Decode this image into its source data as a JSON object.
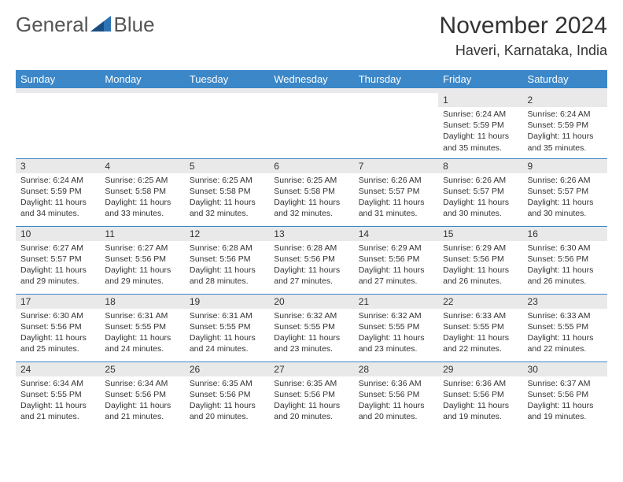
{
  "logo": {
    "word1": "General",
    "word2": "Blue"
  },
  "title": "November 2024",
  "location": "Haveri, Karnataka, India",
  "colors": {
    "header_bg": "#3b87c8",
    "header_text": "#ffffff",
    "daynum_bg": "#e9e9e9",
    "border": "#3b87c8",
    "text": "#333333",
    "page_bg": "#ffffff",
    "logo_gray": "#555555",
    "logo_blue": "#2d74b5"
  },
  "day_names": [
    "Sunday",
    "Monday",
    "Tuesday",
    "Wednesday",
    "Thursday",
    "Friday",
    "Saturday"
  ],
  "weeks": [
    [
      {
        "n": "",
        "sr": "",
        "ss": "",
        "dl": "",
        "empty": true
      },
      {
        "n": "",
        "sr": "",
        "ss": "",
        "dl": "",
        "empty": true
      },
      {
        "n": "",
        "sr": "",
        "ss": "",
        "dl": "",
        "empty": true
      },
      {
        "n": "",
        "sr": "",
        "ss": "",
        "dl": "",
        "empty": true
      },
      {
        "n": "",
        "sr": "",
        "ss": "",
        "dl": "",
        "empty": true
      },
      {
        "n": "1",
        "sr": "Sunrise: 6:24 AM",
        "ss": "Sunset: 5:59 PM",
        "dl": "Daylight: 11 hours and 35 minutes."
      },
      {
        "n": "2",
        "sr": "Sunrise: 6:24 AM",
        "ss": "Sunset: 5:59 PM",
        "dl": "Daylight: 11 hours and 35 minutes."
      }
    ],
    [
      {
        "n": "3",
        "sr": "Sunrise: 6:24 AM",
        "ss": "Sunset: 5:59 PM",
        "dl": "Daylight: 11 hours and 34 minutes."
      },
      {
        "n": "4",
        "sr": "Sunrise: 6:25 AM",
        "ss": "Sunset: 5:58 PM",
        "dl": "Daylight: 11 hours and 33 minutes."
      },
      {
        "n": "5",
        "sr": "Sunrise: 6:25 AM",
        "ss": "Sunset: 5:58 PM",
        "dl": "Daylight: 11 hours and 32 minutes."
      },
      {
        "n": "6",
        "sr": "Sunrise: 6:25 AM",
        "ss": "Sunset: 5:58 PM",
        "dl": "Daylight: 11 hours and 32 minutes."
      },
      {
        "n": "7",
        "sr": "Sunrise: 6:26 AM",
        "ss": "Sunset: 5:57 PM",
        "dl": "Daylight: 11 hours and 31 minutes."
      },
      {
        "n": "8",
        "sr": "Sunrise: 6:26 AM",
        "ss": "Sunset: 5:57 PM",
        "dl": "Daylight: 11 hours and 30 minutes."
      },
      {
        "n": "9",
        "sr": "Sunrise: 6:26 AM",
        "ss": "Sunset: 5:57 PM",
        "dl": "Daylight: 11 hours and 30 minutes."
      }
    ],
    [
      {
        "n": "10",
        "sr": "Sunrise: 6:27 AM",
        "ss": "Sunset: 5:57 PM",
        "dl": "Daylight: 11 hours and 29 minutes."
      },
      {
        "n": "11",
        "sr": "Sunrise: 6:27 AM",
        "ss": "Sunset: 5:56 PM",
        "dl": "Daylight: 11 hours and 29 minutes."
      },
      {
        "n": "12",
        "sr": "Sunrise: 6:28 AM",
        "ss": "Sunset: 5:56 PM",
        "dl": "Daylight: 11 hours and 28 minutes."
      },
      {
        "n": "13",
        "sr": "Sunrise: 6:28 AM",
        "ss": "Sunset: 5:56 PM",
        "dl": "Daylight: 11 hours and 27 minutes."
      },
      {
        "n": "14",
        "sr": "Sunrise: 6:29 AM",
        "ss": "Sunset: 5:56 PM",
        "dl": "Daylight: 11 hours and 27 minutes."
      },
      {
        "n": "15",
        "sr": "Sunrise: 6:29 AM",
        "ss": "Sunset: 5:56 PM",
        "dl": "Daylight: 11 hours and 26 minutes."
      },
      {
        "n": "16",
        "sr": "Sunrise: 6:30 AM",
        "ss": "Sunset: 5:56 PM",
        "dl": "Daylight: 11 hours and 26 minutes."
      }
    ],
    [
      {
        "n": "17",
        "sr": "Sunrise: 6:30 AM",
        "ss": "Sunset: 5:56 PM",
        "dl": "Daylight: 11 hours and 25 minutes."
      },
      {
        "n": "18",
        "sr": "Sunrise: 6:31 AM",
        "ss": "Sunset: 5:55 PM",
        "dl": "Daylight: 11 hours and 24 minutes."
      },
      {
        "n": "19",
        "sr": "Sunrise: 6:31 AM",
        "ss": "Sunset: 5:55 PM",
        "dl": "Daylight: 11 hours and 24 minutes."
      },
      {
        "n": "20",
        "sr": "Sunrise: 6:32 AM",
        "ss": "Sunset: 5:55 PM",
        "dl": "Daylight: 11 hours and 23 minutes."
      },
      {
        "n": "21",
        "sr": "Sunrise: 6:32 AM",
        "ss": "Sunset: 5:55 PM",
        "dl": "Daylight: 11 hours and 23 minutes."
      },
      {
        "n": "22",
        "sr": "Sunrise: 6:33 AM",
        "ss": "Sunset: 5:55 PM",
        "dl": "Daylight: 11 hours and 22 minutes."
      },
      {
        "n": "23",
        "sr": "Sunrise: 6:33 AM",
        "ss": "Sunset: 5:55 PM",
        "dl": "Daylight: 11 hours and 22 minutes."
      }
    ],
    [
      {
        "n": "24",
        "sr": "Sunrise: 6:34 AM",
        "ss": "Sunset: 5:55 PM",
        "dl": "Daylight: 11 hours and 21 minutes."
      },
      {
        "n": "25",
        "sr": "Sunrise: 6:34 AM",
        "ss": "Sunset: 5:56 PM",
        "dl": "Daylight: 11 hours and 21 minutes."
      },
      {
        "n": "26",
        "sr": "Sunrise: 6:35 AM",
        "ss": "Sunset: 5:56 PM",
        "dl": "Daylight: 11 hours and 20 minutes."
      },
      {
        "n": "27",
        "sr": "Sunrise: 6:35 AM",
        "ss": "Sunset: 5:56 PM",
        "dl": "Daylight: 11 hours and 20 minutes."
      },
      {
        "n": "28",
        "sr": "Sunrise: 6:36 AM",
        "ss": "Sunset: 5:56 PM",
        "dl": "Daylight: 11 hours and 20 minutes."
      },
      {
        "n": "29",
        "sr": "Sunrise: 6:36 AM",
        "ss": "Sunset: 5:56 PM",
        "dl": "Daylight: 11 hours and 19 minutes."
      },
      {
        "n": "30",
        "sr": "Sunrise: 6:37 AM",
        "ss": "Sunset: 5:56 PM",
        "dl": "Daylight: 11 hours and 19 minutes."
      }
    ]
  ]
}
